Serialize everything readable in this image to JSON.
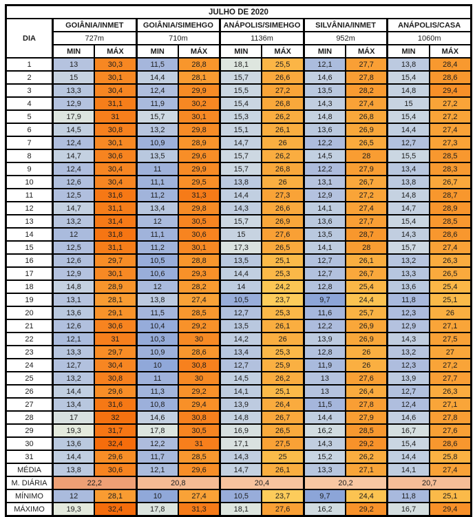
{
  "title": "JULHO DE 2020",
  "columns": {
    "day_label": "DIA",
    "min_label": "MIN",
    "max_label": "MÁX"
  },
  "stations": [
    {
      "name": "GOIÂNIA/INMET",
      "elevation": "727m"
    },
    {
      "name": "GOIÂNIA/SIMEHGO",
      "elevation": "710m"
    },
    {
      "name": "ANÁPOLIS/SIMEHGO",
      "elevation": "1136m"
    },
    {
      "name": "SILVÂNIA/INMET",
      "elevation": "952m"
    },
    {
      "name": "ANÁPOLIS/CASA",
      "elevation": "1060m"
    }
  ],
  "days": [
    {
      "day": "1",
      "temps": [
        "13",
        "30,3",
        "11,5",
        "28,8",
        "18,1",
        "25,5",
        "12,1",
        "27,7",
        "13,8",
        "28,4"
      ]
    },
    {
      "day": "2",
      "temps": [
        "15",
        "30,1",
        "14,4",
        "28,1",
        "15,7",
        "26,6",
        "14,6",
        "27,8",
        "15,4",
        "28,6"
      ]
    },
    {
      "day": "3",
      "temps": [
        "13,3",
        "30,4",
        "12,4",
        "29,9",
        "15,5",
        "27,2",
        "13,5",
        "28,2",
        "14,8",
        "29,4"
      ]
    },
    {
      "day": "4",
      "temps": [
        "12,9",
        "31,1",
        "11,9",
        "30,2",
        "15,4",
        "26,8",
        "14,3",
        "27,4",
        "15",
        "27,2"
      ]
    },
    {
      "day": "5",
      "temps": [
        "17,9",
        "31",
        "15,7",
        "30,1",
        "15,3",
        "26,2",
        "14,8",
        "26,8",
        "15,4",
        "27,2"
      ]
    },
    {
      "day": "6",
      "temps": [
        "14,5",
        "30,8",
        "13,2",
        "29,8",
        "15,1",
        "26,1",
        "13,6",
        "26,9",
        "14,4",
        "27,4"
      ]
    },
    {
      "day": "7",
      "temps": [
        "12,4",
        "30,1",
        "10,9",
        "28,9",
        "14,7",
        "26",
        "12,2",
        "26,5",
        "12,7",
        "27,3"
      ]
    },
    {
      "day": "8",
      "temps": [
        "14,7",
        "30,6",
        "13,5",
        "29,6",
        "15,7",
        "26,2",
        "14,5",
        "28",
        "15,5",
        "28,5"
      ]
    },
    {
      "day": "9",
      "temps": [
        "12,4",
        "30,4",
        "11",
        "29,9",
        "15,7",
        "26,8",
        "12,2",
        "27,9",
        "13,4",
        "28,3"
      ]
    },
    {
      "day": "10",
      "temps": [
        "12,6",
        "30,4",
        "11,1",
        "29,5",
        "13,8",
        "26",
        "13,1",
        "26,7",
        "13,8",
        "26,7"
      ]
    },
    {
      "day": "11",
      "temps": [
        "12,5",
        "31,6",
        "11,2",
        "31,3",
        "14,4",
        "27,3",
        "12,9",
        "27,2",
        "14,8",
        "28,7"
      ]
    },
    {
      "day": "12",
      "temps": [
        "14,7",
        "31,1",
        "13,4",
        "29,8",
        "14,3",
        "26,6",
        "14,1",
        "27,4",
        "14,7",
        "28,9"
      ]
    },
    {
      "day": "13",
      "temps": [
        "13,2",
        "31,4",
        "12",
        "30,5",
        "15,7",
        "26,9",
        "13,6",
        "27,7",
        "15,4",
        "28,5"
      ]
    },
    {
      "day": "14",
      "temps": [
        "12",
        "31,8",
        "11,1",
        "30,6",
        "15",
        "27,6",
        "13,5",
        "28,7",
        "14,3",
        "28,6"
      ]
    },
    {
      "day": "15",
      "temps": [
        "12,5",
        "31,1",
        "11,2",
        "30,1",
        "17,3",
        "26,5",
        "14,1",
        "28",
        "15,7",
        "27,4"
      ]
    },
    {
      "day": "16",
      "temps": [
        "12,6",
        "29,7",
        "10,5",
        "28,8",
        "13,5",
        "25,1",
        "12,7",
        "26,1",
        "13,2",
        "26,3"
      ]
    },
    {
      "day": "17",
      "temps": [
        "12,9",
        "30,1",
        "10,6",
        "29,3",
        "14,4",
        "25,3",
        "12,7",
        "26,7",
        "13,3",
        "26,5"
      ]
    },
    {
      "day": "18",
      "temps": [
        "14,8",
        "28,9",
        "12",
        "28,2",
        "14",
        "24,2",
        "12,8",
        "25,4",
        "13,6",
        "25,4"
      ]
    },
    {
      "day": "19",
      "temps": [
        "13,1",
        "28,1",
        "13,8",
        "27,4",
        "10,5",
        "23,7",
        "9,7",
        "24,4",
        "11,8",
        "25,1"
      ]
    },
    {
      "day": "20",
      "temps": [
        "13,6",
        "29,1",
        "11,5",
        "28,5",
        "12,7",
        "25,3",
        "11,6",
        "25,7",
        "12,3",
        "26"
      ]
    },
    {
      "day": "21",
      "temps": [
        "12,6",
        "30,6",
        "10,4",
        "29,2",
        "13,5",
        "26,1",
        "12,2",
        "26,9",
        "12,9",
        "27,1"
      ]
    },
    {
      "day": "22",
      "temps": [
        "12,1",
        "31",
        "10,3",
        "30",
        "14,2",
        "26",
        "13,9",
        "26,9",
        "14,3",
        "27,5"
      ]
    },
    {
      "day": "23",
      "temps": [
        "13,3",
        "29,7",
        "10,9",
        "28,6",
        "13,4",
        "25,3",
        "12,8",
        "26",
        "13,2",
        "27"
      ]
    },
    {
      "day": "24",
      "temps": [
        "12,7",
        "30,4",
        "10",
        "30,8",
        "12,7",
        "25,9",
        "11,9",
        "26",
        "12,3",
        "27,2"
      ]
    },
    {
      "day": "25",
      "temps": [
        "13,2",
        "30,8",
        "11",
        "30",
        "14,5",
        "26,2",
        "13",
        "27,6",
        "13,9",
        "27,7"
      ]
    },
    {
      "day": "26",
      "temps": [
        "14,4",
        "29,6",
        "11,3",
        "29,2",
        "14,1",
        "25,1",
        "13",
        "26,4",
        "12,7",
        "26,3"
      ]
    },
    {
      "day": "27",
      "temps": [
        "13,4",
        "31,6",
        "10,8",
        "29,4",
        "13,9",
        "26,4",
        "11,5",
        "27,8",
        "12,4",
        "27,1"
      ]
    },
    {
      "day": "28",
      "temps": [
        "17",
        "32",
        "14,6",
        "30,8",
        "14,8",
        "26,7",
        "14,4",
        "27,9",
        "14,6",
        "27,8"
      ]
    },
    {
      "day": "29",
      "temps": [
        "19,3",
        "31,7",
        "17,8",
        "30,5",
        "16,9",
        "26,5",
        "16,2",
        "28,5",
        "16,7",
        "27,6"
      ]
    },
    {
      "day": "30",
      "temps": [
        "13,6",
        "32,4",
        "12,2",
        "31",
        "17,1",
        "27,5",
        "14,3",
        "29,2",
        "15,4",
        "28,6"
      ]
    },
    {
      "day": "31",
      "temps": [
        "14,4",
        "29,6",
        "11,7",
        "28,5",
        "14,3",
        "25",
        "15,2",
        "26,2",
        "14,4",
        "25,8"
      ]
    }
  ],
  "summary_rows": [
    {
      "label": "MÉDIA",
      "type": "pair",
      "values": [
        "13,8",
        "30,6",
        "12,1",
        "29,6",
        "14,7",
        "26,1",
        "13,3",
        "27,1",
        "14,1",
        "27,4"
      ]
    },
    {
      "label": "M. DIÁRIA",
      "type": "merged",
      "values": [
        "22,2",
        "20,8",
        "20,4",
        "20,2",
        "20,7"
      ]
    },
    {
      "label": "MÍNIMO",
      "type": "pair",
      "values": [
        "12",
        "28,1",
        "10",
        "27,4",
        "10,5",
        "23,7",
        "9,7",
        "24,4",
        "11,8",
        "25,1"
      ]
    },
    {
      "label": "MÁXIMO",
      "type": "pair",
      "values": [
        "19,3",
        "32,4",
        "17,8",
        "31,3",
        "18,1",
        "27,6",
        "16,2",
        "29,2",
        "16,7",
        "29,4"
      ]
    }
  ],
  "colors": {
    "border": "#000000",
    "header_bg": "#ffffff",
    "text": "#1c1c1c",
    "scale_stops": [
      {
        "value": 9.7,
        "color": "#8CA5D8"
      },
      {
        "value": 11,
        "color": "#9FB2DB"
      },
      {
        "value": 12.5,
        "color": "#B0BFDE"
      },
      {
        "value": 14,
        "color": "#BECCE0"
      },
      {
        "value": 15.5,
        "color": "#CBD7E2"
      },
      {
        "value": 17,
        "color": "#D8E1E0"
      },
      {
        "value": 18.5,
        "color": "#E0E8DF"
      },
      {
        "value": 19.5,
        "color": "#E5EBDD"
      },
      {
        "value": 23.5,
        "color": "#FDCE5E"
      },
      {
        "value": 24.5,
        "color": "#FCC24F"
      },
      {
        "value": 26,
        "color": "#FAAF41"
      },
      {
        "value": 27.5,
        "color": "#F9A136"
      },
      {
        "value": 29,
        "color": "#F8942B"
      },
      {
        "value": 30.5,
        "color": "#F78521"
      },
      {
        "value": 31.5,
        "color": "#F67916"
      },
      {
        "value": 32.4,
        "color": "#F56D0C"
      }
    ],
    "diaria_scale_stops": [
      {
        "value": 20.2,
        "color": "#F8C7A2"
      },
      {
        "value": 22.2,
        "color": "#EEA075"
      }
    ]
  }
}
